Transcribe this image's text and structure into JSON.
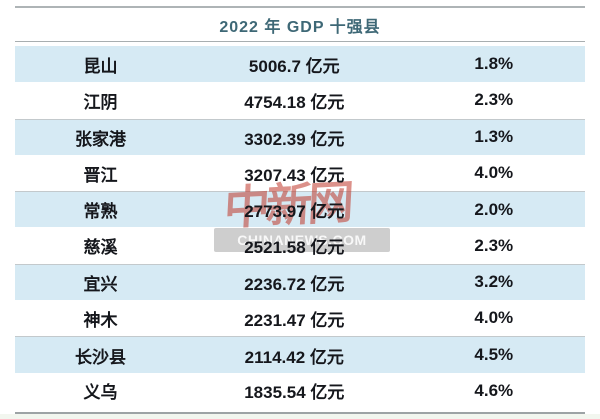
{
  "title": "2022 年 GDP 十强县",
  "watermark": {
    "logo_text": "中新网",
    "site_text": "CHINANEWS.COM"
  },
  "table": {
    "rows": [
      {
        "county": "昆山",
        "gdp": "5006.7 亿元",
        "growth": "1.8%"
      },
      {
        "county": "江阴",
        "gdp": "4754.18 亿元",
        "growth": "2.3%"
      },
      {
        "county": "张家港",
        "gdp": "3302.39 亿元",
        "growth": "1.3%"
      },
      {
        "county": "晋江",
        "gdp": "3207.43 亿元",
        "growth": "4.0%"
      },
      {
        "county": "常熟",
        "gdp": "2773.97 亿元",
        "growth": "2.0%"
      },
      {
        "county": "慈溪",
        "gdp": "2521.58 亿元",
        "growth": "2.3%"
      },
      {
        "county": "宜兴",
        "gdp": "2236.72 亿元",
        "growth": "3.2%"
      },
      {
        "county": "神木",
        "gdp": "2231.47 亿元",
        "growth": "4.0%"
      },
      {
        "county": "长沙县",
        "gdp": "2114.42 亿元",
        "growth": "4.5%"
      },
      {
        "county": "义乌",
        "gdp": "1835.54 亿元",
        "growth": "4.6%"
      }
    ]
  },
  "chart_data": {
    "type": "table",
    "title": "2022 年 GDP 十强县",
    "counties": [
      "昆山",
      "江阴",
      "张家港",
      "晋江",
      "常熟",
      "慈溪",
      "宜兴",
      "神木",
      "长沙县",
      "义乌"
    ],
    "gdp_yi_yuan": [
      5006.7,
      4754.18,
      3302.39,
      3207.43,
      2773.97,
      2521.58,
      2236.72,
      2231.47,
      2114.42,
      1835.54
    ],
    "growth_pct": [
      1.8,
      2.3,
      1.3,
      4.0,
      2.0,
      2.3,
      3.2,
      4.0,
      4.5,
      4.6
    ],
    "unit_gdp": "亿元",
    "unit_growth": "%"
  },
  "colors": {
    "row_alt_blue": "#d6eaf4",
    "title_text": "#3e6876",
    "body_text": "#15171c",
    "rule_gray": "#a8aeb0",
    "watermark_red": "#c0392b"
  }
}
